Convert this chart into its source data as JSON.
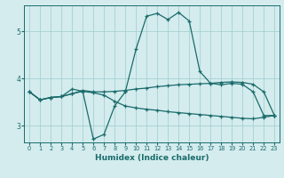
{
  "xlabel": "Humidex (Indice chaleur)",
  "bg_color": "#d4ecee",
  "grid_color": "#9ecbce",
  "line_color": "#1a6b6b",
  "xlim": [
    -0.5,
    23.5
  ],
  "ylim": [
    2.65,
    5.55
  ],
  "yticks": [
    3,
    4,
    5
  ],
  "xticks": [
    0,
    1,
    2,
    3,
    4,
    5,
    6,
    7,
    8,
    9,
    10,
    11,
    12,
    13,
    14,
    15,
    16,
    17,
    18,
    19,
    20,
    21,
    22,
    23
  ],
  "line1_x": [
    0,
    1,
    2,
    3,
    4,
    5,
    6,
    7,
    8,
    9,
    10,
    11,
    12,
    13,
    14,
    15,
    16,
    17,
    18,
    19,
    20,
    21,
    22,
    23
  ],
  "line1_y": [
    3.72,
    3.55,
    3.6,
    3.62,
    3.68,
    3.75,
    3.72,
    3.72,
    3.73,
    3.75,
    3.78,
    3.8,
    3.83,
    3.85,
    3.87,
    3.88,
    3.89,
    3.9,
    3.92,
    3.93,
    3.92,
    3.88,
    3.72,
    3.22
  ],
  "line2_x": [
    0,
    1,
    2,
    3,
    4,
    5,
    6,
    7,
    8,
    9,
    10,
    11,
    12,
    13,
    14,
    15,
    16,
    17,
    18,
    19,
    20,
    21,
    22,
    23
  ],
  "line2_y": [
    3.72,
    3.55,
    3.6,
    3.62,
    3.78,
    3.73,
    2.72,
    2.82,
    3.42,
    3.72,
    4.62,
    5.32,
    5.38,
    5.25,
    5.4,
    5.22,
    4.15,
    3.9,
    3.87,
    3.9,
    3.88,
    3.72,
    3.22,
    3.22
  ],
  "line3_x": [
    0,
    1,
    2,
    3,
    4,
    5,
    6,
    7,
    8,
    9,
    10,
    11,
    12,
    13,
    14,
    15,
    16,
    17,
    18,
    19,
    20,
    21,
    22,
    23
  ],
  "line3_y": [
    3.72,
    3.55,
    3.6,
    3.62,
    3.68,
    3.73,
    3.7,
    3.65,
    3.52,
    3.42,
    3.38,
    3.35,
    3.33,
    3.3,
    3.28,
    3.26,
    3.24,
    3.22,
    3.2,
    3.18,
    3.16,
    3.15,
    3.18,
    3.22
  ]
}
